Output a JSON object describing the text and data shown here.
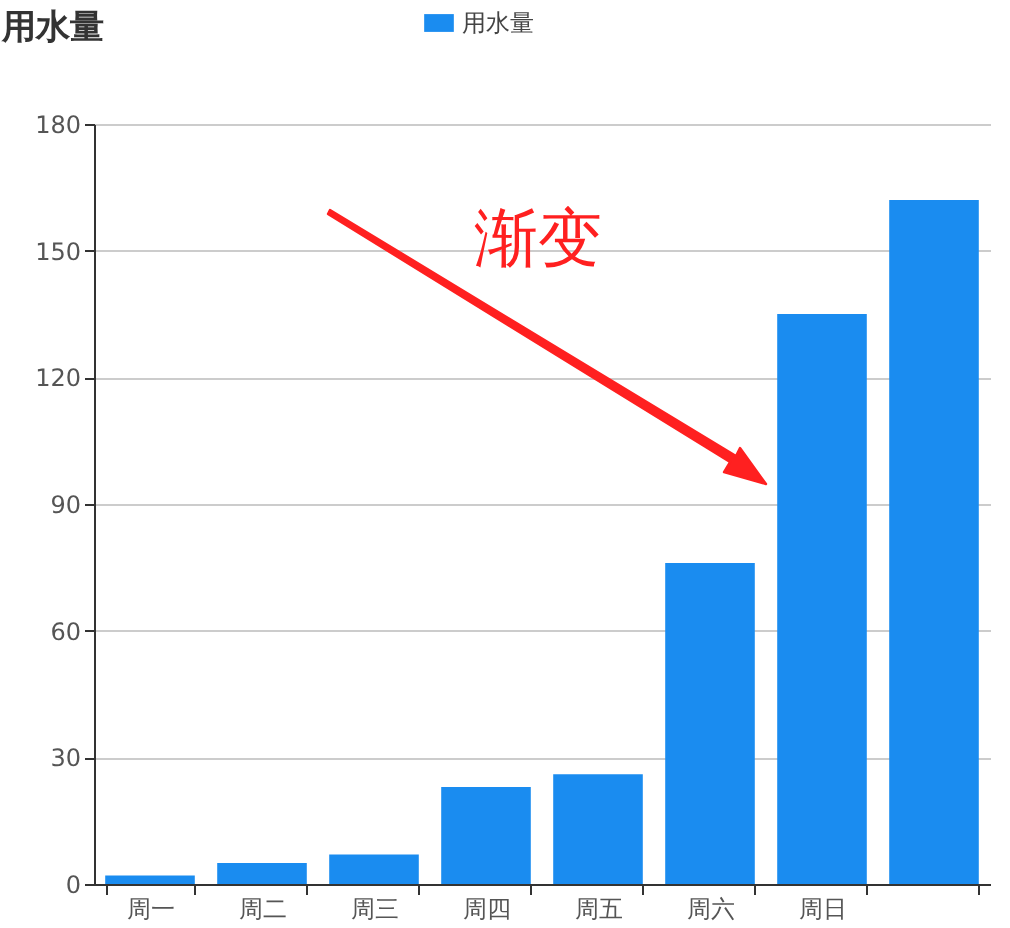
{
  "chart_data": {
    "type": "bar",
    "title": "用水量",
    "categories": [
      "周一",
      "周二",
      "周三",
      "周四",
      "周五",
      "周六",
      "周日",
      null
    ],
    "series": [
      {
        "name": "用水量",
        "color": "#1a8cf0",
        "values": [
          2,
          5,
          7,
          23,
          26,
          76,
          135,
          162
        ]
      }
    ],
    "ylim": [
      0,
      180
    ],
    "yticks": [
      0,
      30,
      60,
      90,
      120,
      150,
      180
    ],
    "grid": "y",
    "legend": "top",
    "annotations": [
      "渐变"
    ]
  }
}
